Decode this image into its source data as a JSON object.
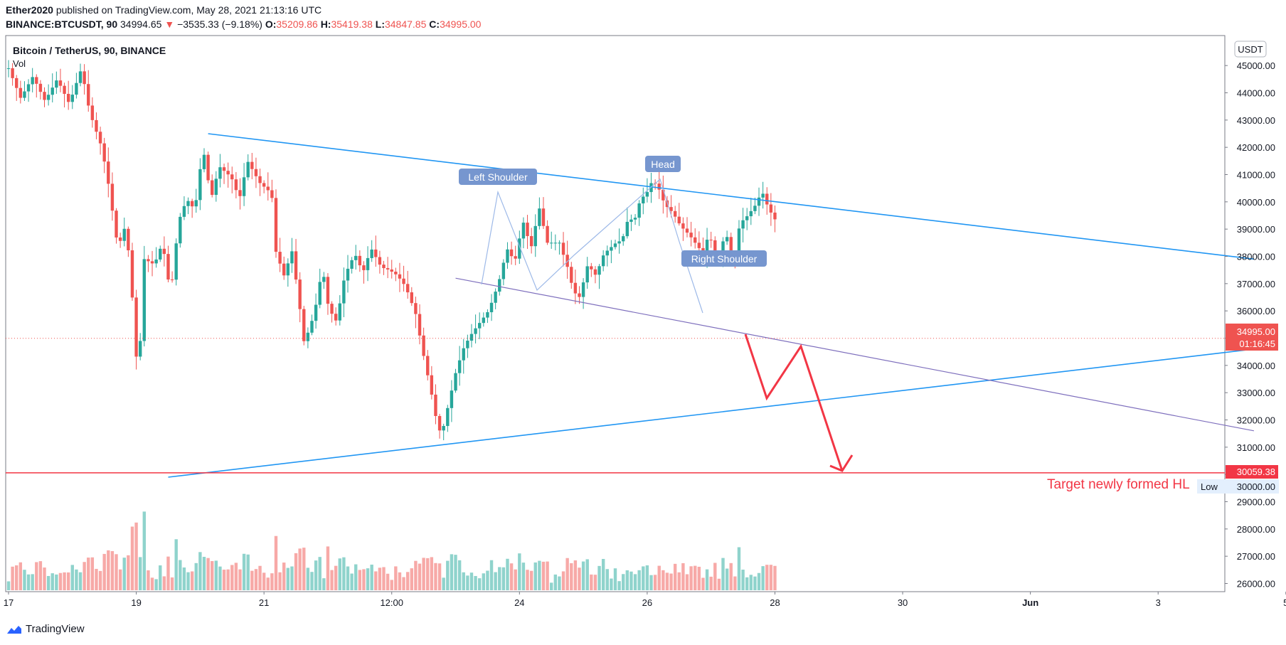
{
  "header": {
    "author": "Ether2020",
    "published_text": "published on TradingView.com, May 28, 2021 21:13:16 UTC",
    "symbol": "BINANCE:BTCUSDT, 90",
    "last": "34994.65",
    "change_arrow": "▼",
    "change": "−3535.33 (−9.18%)",
    "open_label": "O:",
    "open": "35209.86",
    "high_label": "H:",
    "high": "35419.38",
    "low_label": "L:",
    "low": "34847.85",
    "close_label": "C:",
    "close": "34995.00",
    "change_color": "#ef5350"
  },
  "legend": {
    "title": "Bitcoin / TetherUS, 90, BINANCE",
    "vol_label": "Vol"
  },
  "currency_button": "USDT",
  "annotations": {
    "left_shoulder": "Left Shoulder",
    "head": "Head",
    "right_shoulder": "Right Shoulder",
    "target_text": "Target newly formed HL",
    "label_color": "#7696cf",
    "trend_color": "#2196f3",
    "neck_color": "#7e6fbd",
    "target_color": "#f23645"
  },
  "price_tags": {
    "current_price": "34995.00",
    "countdown": "01:16:45",
    "target_price": "30059.38",
    "low_label": "Low",
    "low_value": "30000.00"
  },
  "footer": {
    "brand": "TradingView",
    "logo_icon": "tradingview-logo-icon"
  },
  "chart_data": {
    "type": "candlestick",
    "symbol": "BINANCE:BTCUSDT",
    "interval": "90",
    "y_axis": {
      "ticks": [
        26000,
        27000,
        28000,
        29000,
        30000,
        31000,
        32000,
        33000,
        34000,
        35000,
        36000,
        37000,
        38000,
        39000,
        40000,
        41000,
        42000,
        43000,
        44000,
        45000
      ],
      "tick_labels": [
        "26000.00",
        "27000.00",
        "28000.00",
        "29000.00",
        "",
        "31000.00",
        "32000.00",
        "33000.00",
        "34000.00",
        "",
        "36000.00",
        "37000.00",
        "38000.00",
        "39000.00",
        "40000.00",
        "41000.00",
        "42000.00",
        "43000.00",
        "44000.00",
        "45000.00"
      ],
      "range": [
        25700,
        46100
      ]
    },
    "x_axis": {
      "labels": [
        "17",
        "19",
        "21",
        "12:00",
        "24",
        "26",
        "28",
        "30",
        "Jun",
        "3",
        "5"
      ],
      "day_span": [
        17,
        36
      ]
    },
    "prices": [
      [
        17.0,
        44900
      ],
      [
        17.3,
        43800
      ],
      [
        17.6,
        44600
      ],
      [
        17.9,
        43700
      ],
      [
        18.2,
        44500
      ],
      [
        18.5,
        43600
      ],
      [
        18.8,
        44900
      ],
      [
        19.0,
        43300
      ],
      [
        19.3,
        42000
      ],
      [
        19.45,
        40800
      ],
      [
        19.7,
        38300
      ],
      [
        19.9,
        39200
      ],
      [
        20.05,
        36600
      ],
      [
        20.2,
        33300
      ],
      [
        20.35,
        37900
      ],
      [
        20.6,
        37700
      ],
      [
        20.8,
        38500
      ],
      [
        21.0,
        36600
      ],
      [
        21.2,
        39300
      ],
      [
        21.4,
        40100
      ],
      [
        21.6,
        39700
      ],
      [
        21.8,
        42000
      ],
      [
        22.0,
        40100
      ],
      [
        22.2,
        41300
      ],
      [
        22.5,
        40900
      ],
      [
        22.7,
        40100
      ],
      [
        22.9,
        41500
      ],
      [
        23.2,
        40700
      ],
      [
        23.5,
        40300
      ],
      [
        23.55,
        38400
      ],
      [
        23.8,
        37300
      ],
      [
        24.0,
        38200
      ],
      [
        24.2,
        36000
      ],
      [
        24.3,
        34800
      ],
      [
        24.55,
        35900
      ],
      [
        24.75,
        37600
      ],
      [
        24.9,
        36100
      ],
      [
        25.1,
        35600
      ],
      [
        25.3,
        37300
      ],
      [
        25.55,
        38100
      ],
      [
        25.75,
        37400
      ],
      [
        25.95,
        38300
      ],
      [
        26.2,
        37600
      ],
      [
        26.4,
        37500
      ],
      [
        26.6,
        37300
      ],
      [
        26.8,
        36900
      ],
      [
        27.05,
        35900
      ],
      [
        27.2,
        34700
      ],
      [
        27.45,
        32900
      ],
      [
        27.6,
        31700
      ],
      [
        27.7,
        31500
      ],
      [
        27.85,
        32500
      ],
      [
        28.05,
        33800
      ],
      [
        28.25,
        34700
      ],
      [
        28.45,
        35200
      ],
      [
        28.65,
        35600
      ],
      [
        28.85,
        36000
      ],
      [
        29.0,
        36600
      ],
      [
        29.15,
        37300
      ],
      [
        29.3,
        38300
      ],
      [
        29.5,
        37800
      ],
      [
        29.7,
        39300
      ],
      [
        29.9,
        38300
      ],
      [
        30.1,
        39800
      ],
      [
        30.3,
        38500
      ],
      [
        30.6,
        38500
      ],
      [
        30.8,
        37600
      ],
      [
        30.95,
        36700
      ],
      [
        31.1,
        36500
      ],
      [
        31.3,
        37700
      ],
      [
        31.5,
        37300
      ],
      [
        31.7,
        38100
      ],
      [
        31.85,
        38300
      ],
      [
        32.0,
        38500
      ],
      [
        32.15,
        38600
      ],
      [
        32.3,
        39400
      ],
      [
        32.45,
        39300
      ],
      [
        32.6,
        40100
      ],
      [
        32.75,
        40300
      ],
      [
        32.9,
        40800
      ],
      [
        33.05,
        40500
      ],
      [
        33.2,
        39900
      ],
      [
        33.4,
        39600
      ],
      [
        33.6,
        39100
      ],
      [
        33.8,
        38800
      ],
      [
        34.0,
        38400
      ],
      [
        34.15,
        38100
      ],
      [
        34.3,
        38900
      ],
      [
        34.5,
        37500
      ],
      [
        34.7,
        39000
      ],
      [
        34.9,
        37500
      ],
      [
        35.05,
        39200
      ],
      [
        35.25,
        39500
      ],
      [
        35.45,
        39900
      ],
      [
        35.6,
        40400
      ],
      [
        35.75,
        39800
      ],
      [
        35.9,
        39400
      ],
      [
        36.0,
        39200
      ]
    ],
    "annotation_lines": {
      "upper_trend": [
        [
          "2021-05-20 03:00",
          42500
        ],
        [
          "2021-06-05 12:00",
          37900
        ]
      ],
      "lower_trend": [
        [
          "2021-05-19 12:00",
          29900
        ],
        [
          "2021-06-05 12:00",
          34600
        ]
      ],
      "neckline": [
        [
          "2021-05-24 00:00",
          37200
        ],
        [
          "2021-06-05 12:00",
          31600
        ]
      ],
      "target_level": 30059.38
    }
  }
}
